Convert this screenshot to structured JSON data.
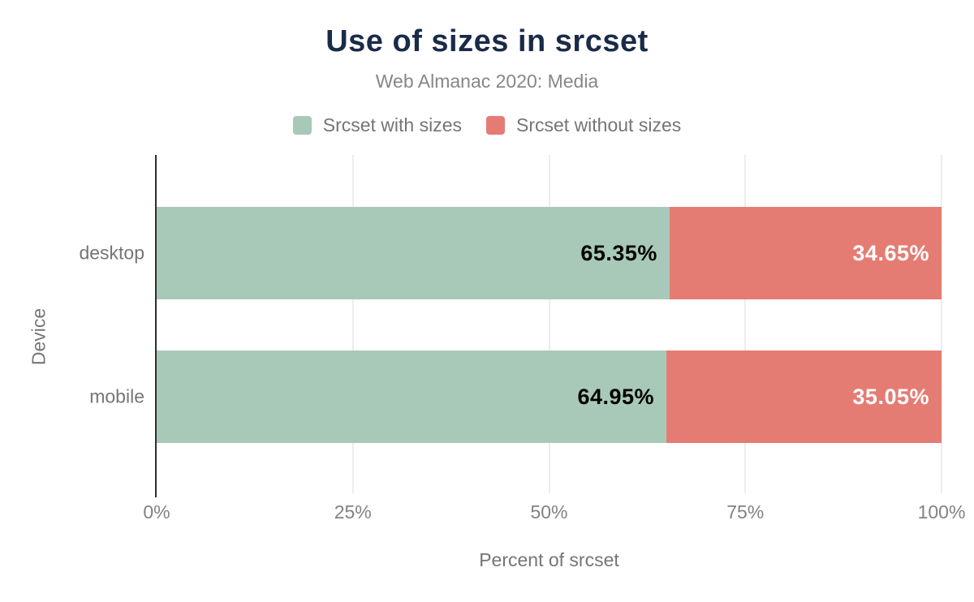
{
  "chart_data": {
    "type": "bar",
    "orientation": "horizontal",
    "stacked": true,
    "title": "Use of sizes in srcset",
    "subtitle": "Web Almanac 2020: Media",
    "xlabel": "Percent of srcset",
    "ylabel": "Device",
    "categories": [
      "desktop",
      "mobile"
    ],
    "series": [
      {
        "name": "Srcset with sizes",
        "color": "#a8c9b8",
        "values": [
          65.35,
          64.95
        ],
        "labels": [
          "65.35%",
          "64.95%"
        ],
        "label_color": "dark"
      },
      {
        "name": "Srcset without sizes",
        "color": "#e57c73",
        "values": [
          34.65,
          35.05
        ],
        "labels": [
          "34.65%",
          "35.05%"
        ],
        "label_color": "light"
      }
    ],
    "xlim": [
      0,
      100
    ],
    "xticks": [
      {
        "label": "0%",
        "value": 0
      },
      {
        "label": "25%",
        "value": 25
      },
      {
        "label": "50%",
        "value": 50
      },
      {
        "label": "75%",
        "value": 75
      },
      {
        "label": "100%",
        "value": 100
      }
    ],
    "grid": true,
    "legend_position": "top"
  },
  "colors": {
    "title": "#1a2b49",
    "axis_line": "#2e2e2e",
    "gridline": "#ededed",
    "gray_text": "#757575",
    "background": "#ffffff"
  }
}
